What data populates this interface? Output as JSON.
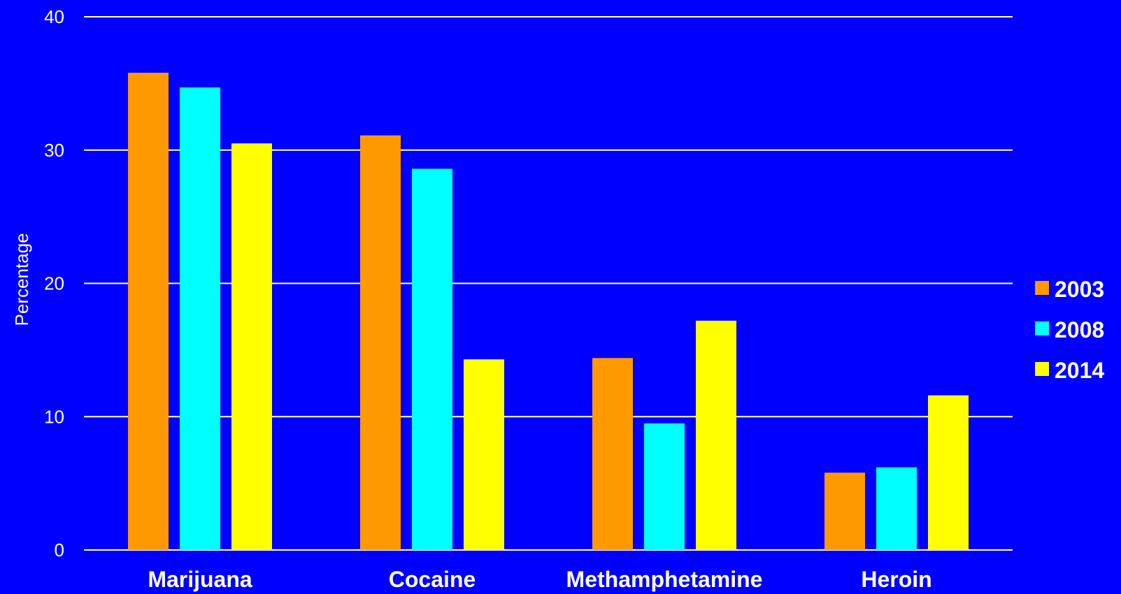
{
  "chart_data": {
    "type": "bar",
    "categories": [
      "Marijuana",
      "Cocaine",
      "Methamphetamine",
      "Heroin"
    ],
    "series": [
      {
        "name": "2003",
        "color": "#ff9900",
        "values": [
          35.8,
          31.1,
          14.4,
          5.8
        ]
      },
      {
        "name": "2008",
        "color": "#00ffff",
        "values": [
          34.7,
          28.6,
          9.5,
          6.2
        ]
      },
      {
        "name": "2014",
        "color": "#ffff00",
        "values": [
          30.5,
          14.3,
          17.2,
          11.6
        ]
      }
    ],
    "ylabel": "Percentage",
    "ylim": [
      0,
      40
    ],
    "yticks": [
      0,
      10,
      20,
      30,
      40
    ],
    "grid": true,
    "legend_position": "right",
    "background": "#0000ff",
    "gridline_color": "#ffffff"
  }
}
